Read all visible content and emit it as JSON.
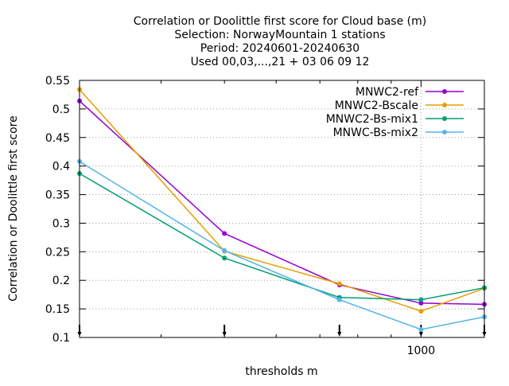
{
  "chart_data": {
    "type": "line",
    "title_lines": [
      "Correlation or Doolittle first score  for Cloud base (m)",
      "Selection: NorwayMountain      1 stations",
      "Period: 20240601-20240630",
      "Used 00,03,...,21 + 03 06 09 12"
    ],
    "xlabel": "thresholds m",
    "ylabel": "Correlation or Doolittle first score",
    "x_scale": "log",
    "x": [
      300,
      500,
      750,
      1000,
      1250
    ],
    "xlim": [
      300,
      1250
    ],
    "x_tick_labels": [
      {
        "value": 1000,
        "label": "1000"
      }
    ],
    "ylim": [
      0.1,
      0.55
    ],
    "y_ticks": [
      0.1,
      0.15,
      0.2,
      0.25,
      0.3,
      0.35,
      0.4,
      0.45,
      0.5,
      0.55
    ],
    "y_tick_labels": [
      "0.1",
      "0.15",
      "0.2",
      "0.25",
      "0.3",
      "0.35",
      "0.4",
      "0.45",
      "0.5",
      "0.55"
    ],
    "grid": true,
    "legend_position": "top-right",
    "series": [
      {
        "name": "MNWC2-ref",
        "color": "#9400d3",
        "values": [
          0.514,
          0.282,
          0.192,
          0.16,
          0.158
        ]
      },
      {
        "name": "MNWC2-Bscale",
        "color": "#e69f00",
        "values": [
          0.534,
          0.251,
          0.194,
          0.146,
          0.186
        ]
      },
      {
        "name": "MNWC2-Bs-mix1",
        "color": "#009e73",
        "values": [
          0.387,
          0.239,
          0.17,
          0.166,
          0.187
        ]
      },
      {
        "name": "MNWC-Bs-mix2",
        "color": "#56b4e9",
        "values": [
          0.408,
          0.252,
          0.166,
          0.114,
          0.136
        ]
      }
    ]
  }
}
